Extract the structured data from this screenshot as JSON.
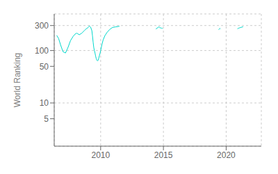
{
  "chart_data": {
    "type": "line",
    "ylabel": "World Ranking",
    "color": "#00d8cc",
    "log": "y",
    "grid": true,
    "xlim": [
      2006.3,
      2022.8
    ],
    "ylim": [
      1.5,
      500
    ],
    "xticks": [
      2010,
      2015,
      2020
    ],
    "yticks": [
      5,
      10,
      50,
      100,
      300
    ],
    "series": [
      {
        "x": [
          2006.5,
          2006.65,
          2006.8,
          2007.0,
          2007.2,
          2007.4,
          2007.6,
          2007.8,
          2007.95,
          2008.1,
          2008.3,
          2008.5,
          2008.7,
          2008.85,
          2009.0,
          2009.05,
          2009.1,
          2009.2,
          2009.3,
          2009.35,
          2009.4,
          2009.45,
          2009.5,
          2009.55,
          2009.6,
          2009.65,
          2009.7,
          2009.75,
          2009.8,
          2009.85,
          2009.9,
          2009.95,
          2010.0,
          2010.1,
          2010.2,
          2010.35,
          2010.5,
          2010.7,
          2010.9,
          2011.0,
          2011.2,
          2011.4,
          2011.5
        ],
        "values": [
          195,
          170,
          130,
          95,
          90,
          115,
          155,
          185,
          205,
          215,
          200,
          215,
          240,
          260,
          275,
          285,
          295,
          280,
          240,
          190,
          145,
          115,
          100,
          90,
          78,
          70,
          65,
          64,
          65,
          72,
          80,
          88,
          100,
          130,
          160,
          195,
          220,
          250,
          272,
          278,
          283,
          288,
          292
        ]
      },
      {
        "x": [
          2014.4,
          2014.5,
          2014.6,
          2014.65,
          2014.7,
          2014.75,
          2014.8,
          2014.85,
          2014.9,
          2014.95
        ],
        "values": [
          258,
          268,
          278,
          285,
          278,
          268,
          272,
          265,
          268,
          263
        ]
      },
      {
        "x": [
          2019.4,
          2019.5,
          2019.55
        ],
        "values": [
          250,
          265,
          258
        ]
      },
      {
        "x": [
          2020.9,
          2021.0,
          2021.1,
          2021.2,
          2021.3,
          2021.35
        ],
        "values": [
          260,
          268,
          273,
          278,
          282,
          285
        ]
      }
    ]
  }
}
